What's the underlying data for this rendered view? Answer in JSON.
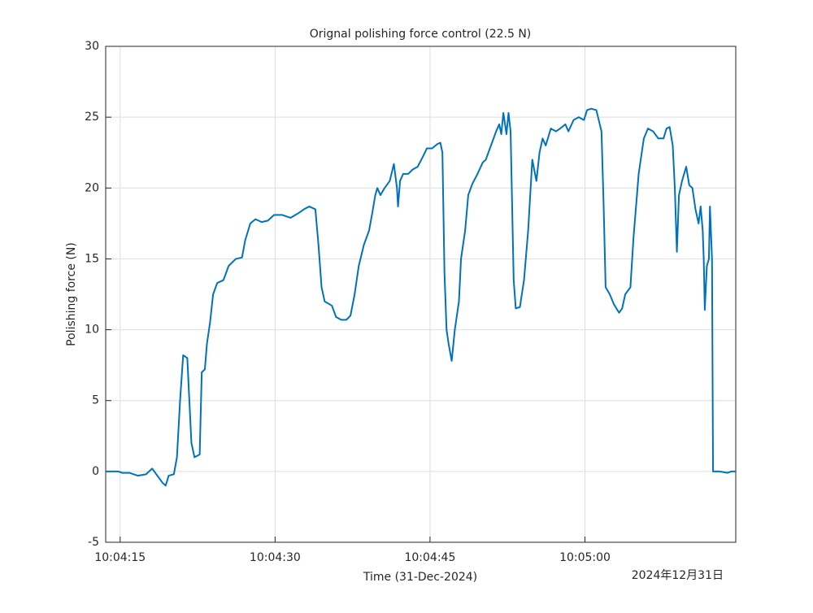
{
  "chart_data": {
    "type": "line",
    "title": "Orignal polishing force control (22.5 N)",
    "x_label": "Time (31-Dec-2024)",
    "y_label": "Polishing force (N)",
    "date_label": "2024年12月31日",
    "grid": true,
    "xlim": [
      13.6,
      74.6
    ],
    "xticks": [
      {
        "value": 15,
        "label": "10:04:15"
      },
      {
        "value": 30,
        "label": "10:04:30"
      },
      {
        "value": 45,
        "label": "10:04:45"
      },
      {
        "value": 60,
        "label": "10:05:00"
      }
    ],
    "ylim": [
      -5,
      30
    ],
    "yticks": [
      -5,
      0,
      5,
      10,
      15,
      20,
      25,
      30
    ],
    "x": [
      13.6,
      14.8,
      15.2,
      15.9,
      16.7,
      17.5,
      18.1,
      18.5,
      19.1,
      19.4,
      19.7,
      20.2,
      20.5,
      20.8,
      21.1,
      21.5,
      21.7,
      21.9,
      22.2,
      22.7,
      22.9,
      23.2,
      23.4,
      23.7,
      24.0,
      24.4,
      25.0,
      25.5,
      26.2,
      26.8,
      27.1,
      27.6,
      28.1,
      28.7,
      29.3,
      29.9,
      30.7,
      31.5,
      32.2,
      32.8,
      33.3,
      33.9,
      34.2,
      34.5,
      34.8,
      35.5,
      35.9,
      36.4,
      36.9,
      37.3,
      37.7,
      38.1,
      38.6,
      39.1,
      39.4,
      39.7,
      39.9,
      40.2,
      40.6,
      41.1,
      41.5,
      41.8,
      41.9,
      42.1,
      42.4,
      42.9,
      43.3,
      43.8,
      44.3,
      44.7,
      45.2,
      45.7,
      46.0,
      46.2,
      46.4,
      46.6,
      46.8,
      47.1,
      47.4,
      47.8,
      48.0,
      48.4,
      48.7,
      49.1,
      49.6,
      50.1,
      50.4,
      50.9,
      51.4,
      51.7,
      51.9,
      52.1,
      52.4,
      52.6,
      52.8,
      53.1,
      53.3,
      53.7,
      54.1,
      54.5,
      54.9,
      55.3,
      55.6,
      55.9,
      56.2,
      56.7,
      57.2,
      57.6,
      58.1,
      58.4,
      58.9,
      59.4,
      59.9,
      60.2,
      60.6,
      61.1,
      61.6,
      61.8,
      62.0,
      62.4,
      62.8,
      63.3,
      63.6,
      63.9,
      64.4,
      64.7,
      65.2,
      65.7,
      66.1,
      66.6,
      67.1,
      67.6,
      67.9,
      68.2,
      68.5,
      68.7,
      68.9,
      69.1,
      69.4,
      69.8,
      70.1,
      70.4,
      70.7,
      71.0,
      71.2,
      71.4,
      71.5,
      71.6,
      71.8,
      72.0,
      72.1,
      72.3,
      72.4,
      73.0,
      73.8,
      74.2,
      74.6
    ],
    "series": [
      {
        "name": "Polishing force",
        "color": "#0072bd",
        "values": [
          0,
          0,
          -0.1,
          -0.1,
          -0.3,
          -0.2,
          0.2,
          -0.2,
          -0.8,
          -1.0,
          -0.3,
          -0.2,
          1,
          5,
          8.2,
          8,
          5,
          2,
          1,
          1.2,
          7,
          7.2,
          9,
          10.5,
          12.5,
          13.3,
          13.5,
          14.5,
          15,
          15.1,
          16.3,
          17.5,
          17.8,
          17.6,
          17.7,
          18.1,
          18.1,
          17.9,
          18.2,
          18.5,
          18.7,
          18.5,
          16,
          13,
          12,
          11.7,
          10.9,
          10.7,
          10.7,
          11,
          12.5,
          14.5,
          16,
          17,
          18.2,
          19.5,
          20,
          19.5,
          20,
          20.5,
          21.7,
          20,
          18.7,
          20.5,
          21,
          21,
          21.3,
          21.5,
          22.2,
          22.8,
          22.8,
          23.1,
          23.2,
          22.5,
          14,
          10,
          9,
          7.8,
          10,
          12,
          15,
          17,
          19.5,
          20.3,
          21,
          21.8,
          22,
          23,
          24,
          24.5,
          23.8,
          25.3,
          23.8,
          25.3,
          24,
          13.5,
          11.5,
          11.6,
          13.5,
          17,
          22,
          20.5,
          22.5,
          23.5,
          23,
          24.2,
          24,
          24.2,
          24.5,
          24,
          24.8,
          25,
          24.8,
          25.5,
          25.6,
          25.5,
          24,
          19,
          13,
          12.5,
          11.8,
          11.2,
          11.5,
          12.5,
          13,
          16.5,
          21,
          23.5,
          24.2,
          24,
          23.5,
          23.5,
          24.2,
          24.3,
          23,
          20,
          15.5,
          19.5,
          20.5,
          21.5,
          20.2,
          20,
          18.5,
          17.5,
          18.7,
          17,
          15,
          11.4,
          14.5,
          15,
          18.7,
          15,
          0,
          0,
          -0.1,
          0,
          0
        ]
      }
    ]
  }
}
